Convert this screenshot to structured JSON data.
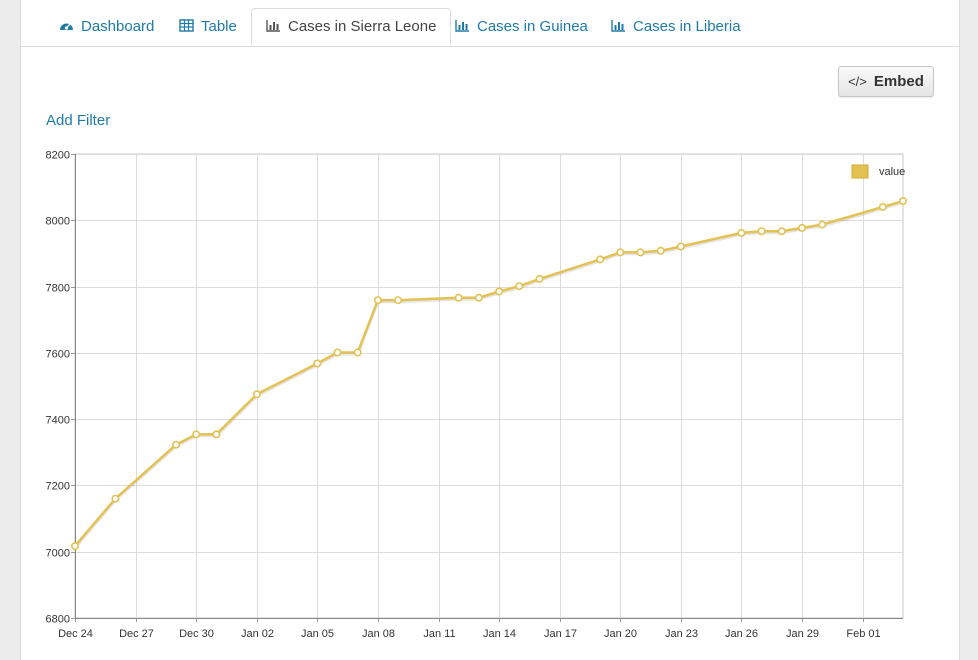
{
  "tabs": [
    {
      "label": "Dashboard",
      "icon": "dashboard-icon"
    },
    {
      "label": "Table",
      "icon": "table-icon"
    },
    {
      "label": "Cases in Sierra Leone",
      "icon": "bar-chart-icon",
      "active": true
    },
    {
      "label": "Cases in Guinea",
      "icon": "bar-chart-icon"
    },
    {
      "label": "Cases in Liberia",
      "icon": "bar-chart-icon"
    }
  ],
  "toolbar": {
    "embed_label": "Embed",
    "embed_icon": "</>"
  },
  "filter": {
    "add_label": "Add Filter"
  },
  "colors": {
    "accent": "#1f7ba6",
    "series": "#e4c153",
    "series_dark": "#d4ac2c"
  },
  "chart_data": {
    "type": "line",
    "title": "",
    "xlabel": "",
    "ylabel": "",
    "ylim": [
      6800,
      8200
    ],
    "yticks": [
      6800,
      7000,
      7200,
      7400,
      7600,
      7800,
      8000,
      8200
    ],
    "xlim": [
      "2014-12-24",
      "2015-02-03"
    ],
    "xticks": [
      "Dec 24",
      "Dec 27",
      "Dec 30",
      "Jan 02",
      "Jan 05",
      "Jan 08",
      "Jan 11",
      "Jan 14",
      "Jan 17",
      "Jan 20",
      "Jan 23",
      "Jan 26",
      "Jan 29",
      "Feb 01"
    ],
    "grid": true,
    "legend_position": "top-right",
    "series": [
      {
        "name": "value",
        "points": [
          {
            "x": "2014-12-24",
            "y": 7017
          },
          {
            "x": "2014-12-26",
            "y": 7160
          },
          {
            "x": "2014-12-29",
            "y": 7323
          },
          {
            "x": "2014-12-30",
            "y": 7354
          },
          {
            "x": "2014-12-31",
            "y": 7354
          },
          {
            "x": "2015-01-02",
            "y": 7475
          },
          {
            "x": "2015-01-05",
            "y": 7568
          },
          {
            "x": "2015-01-06",
            "y": 7601
          },
          {
            "x": "2015-01-07",
            "y": 7601
          },
          {
            "x": "2015-01-08",
            "y": 7759
          },
          {
            "x": "2015-01-09",
            "y": 7759
          },
          {
            "x": "2015-01-12",
            "y": 7766
          },
          {
            "x": "2015-01-13",
            "y": 7766
          },
          {
            "x": "2015-01-14",
            "y": 7785
          },
          {
            "x": "2015-01-15",
            "y": 7801
          },
          {
            "x": "2015-01-16",
            "y": 7823
          },
          {
            "x": "2015-01-19",
            "y": 7882
          },
          {
            "x": "2015-01-20",
            "y": 7903
          },
          {
            "x": "2015-01-21",
            "y": 7903
          },
          {
            "x": "2015-01-22",
            "y": 7908
          },
          {
            "x": "2015-01-23",
            "y": 7921
          },
          {
            "x": "2015-01-26",
            "y": 7962
          },
          {
            "x": "2015-01-27",
            "y": 7967
          },
          {
            "x": "2015-01-28",
            "y": 7967
          },
          {
            "x": "2015-01-29",
            "y": 7977
          },
          {
            "x": "2015-01-30",
            "y": 7987
          },
          {
            "x": "2015-02-02",
            "y": 8040
          },
          {
            "x": "2015-02-03",
            "y": 8058
          }
        ]
      }
    ]
  }
}
